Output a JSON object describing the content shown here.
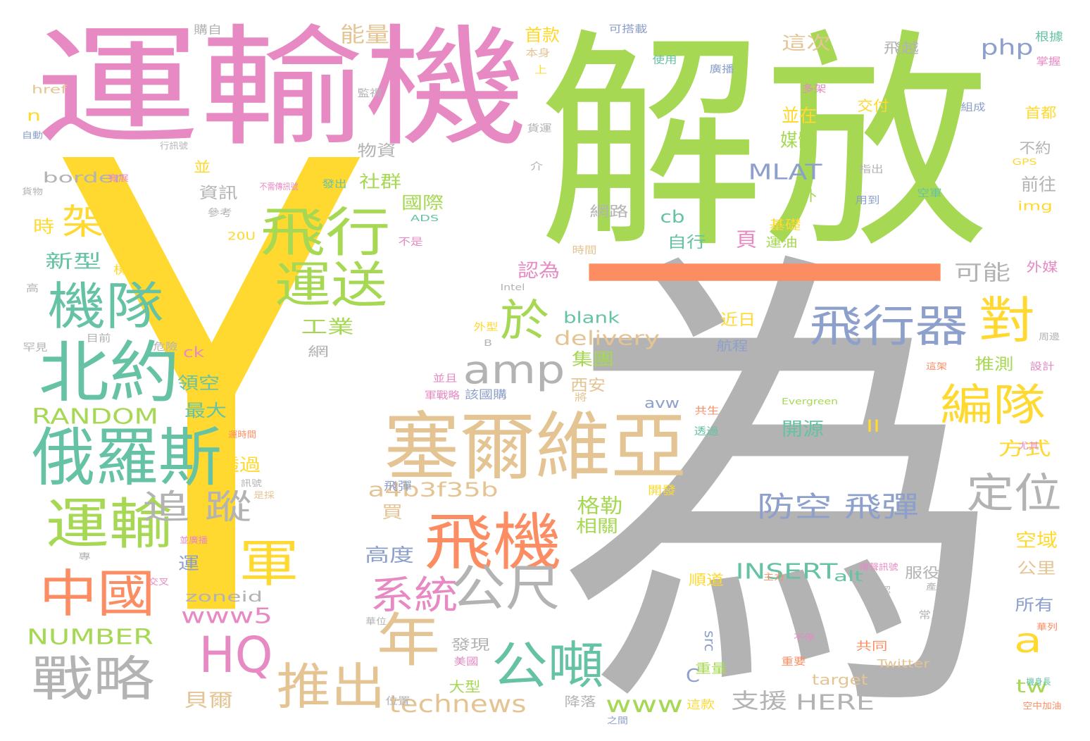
{
  "word_cloud": {
    "palette": {
      "gray": "#b3b3b3",
      "green": "#a6d854",
      "pink": "#e78ac3",
      "yellow": "#ffd92f",
      "orange": "#fc8d62",
      "teal": "#66c2a5",
      "blue": "#8da0cb",
      "tan": "#e5c494"
    },
    "words": [
      {
        "text": "Y",
        "color": "#ffd92f"
      },
      {
        "text": "解放",
        "color": "#a6d854"
      },
      {
        "text": "為",
        "color": "#b3b3b3"
      },
      {
        "text": "一",
        "color": "#fc8d62"
      },
      {
        "text": "運輸機",
        "color": "#e78ac3"
      },
      {
        "text": "塞爾維亞",
        "color": "#e5c494"
      },
      {
        "text": "俄羅斯",
        "color": "#66c2a5"
      },
      {
        "text": "北約",
        "color": "#66c2a5"
      },
      {
        "text": "飛機",
        "color": "#fc8d62"
      },
      {
        "text": "飛行",
        "color": "#a6d854"
      },
      {
        "text": "運送",
        "color": "#a6d854"
      },
      {
        "text": "機隊",
        "color": "#66c2a5"
      },
      {
        "text": "運輸",
        "color": "#a6d854"
      },
      {
        "text": "飛行器",
        "color": "#8da0cb"
      },
      {
        "text": "中國",
        "color": "#fc8d62"
      },
      {
        "text": "戰略",
        "color": "#b3b3b3"
      },
      {
        "text": "HQ",
        "color": "#e78ac3"
      },
      {
        "text": "年",
        "color": "#e5c494"
      },
      {
        "text": "推出",
        "color": "#e5c494"
      },
      {
        "text": "公噸",
        "color": "#66c2a5"
      },
      {
        "text": "公尺",
        "color": "#b3b3b3"
      },
      {
        "text": "amp",
        "color": "#b3b3b3"
      },
      {
        "text": "於",
        "color": "#a6d854"
      },
      {
        "text": "對",
        "color": "#ffd92f"
      },
      {
        "text": "編隊",
        "color": "#ffd92f"
      },
      {
        "text": "軍",
        "color": "#ffd92f"
      },
      {
        "text": "系統",
        "color": "#e78ac3"
      },
      {
        "text": "定位",
        "color": "#b3b3b3"
      },
      {
        "text": "防空 飛彈",
        "color": "#8da0cb"
      },
      {
        "text": "追 蹤",
        "color": "#b3b3b3"
      },
      {
        "text": "架",
        "color": "#ffd92f"
      },
      {
        "text": "a",
        "color": "#ffd92f"
      },
      {
        "text": "technews",
        "color": "#e5c494"
      },
      {
        "text": "www5",
        "color": "#e78ac3"
      },
      {
        "text": "www",
        "color": "#a6d854"
      },
      {
        "text": "a4b3f35b",
        "color": "#e5c494"
      },
      {
        "text": "delivery",
        "color": "#e5c494"
      },
      {
        "text": "MLAT",
        "color": "#8da0cb"
      },
      {
        "text": "RANDOM",
        "color": "#a6d854"
      },
      {
        "text": "NUMBER",
        "color": "#a6d854"
      },
      {
        "text": "INSERT",
        "color": "#66c2a5"
      },
      {
        "text": "HERE",
        "color": "#b3b3b3"
      },
      {
        "text": "php",
        "color": "#8da0cb"
      },
      {
        "text": "border",
        "color": "#b3b3b3"
      },
      {
        "text": "zoneid",
        "color": "#b3b3b3"
      },
      {
        "text": "blank",
        "color": "#66c2a5"
      },
      {
        "text": "target",
        "color": "#e5c494"
      },
      {
        "text": "tw",
        "color": "#a6d854"
      },
      {
        "text": "cb",
        "color": "#66c2a5"
      },
      {
        "text": "avw",
        "color": "#8da0cb"
      },
      {
        "text": "ck",
        "color": "#e78ac3"
      },
      {
        "text": "src",
        "color": "#8da0cb"
      },
      {
        "text": "alt",
        "color": "#66c2a5"
      },
      {
        "text": "img",
        "color": "#ffd92f"
      },
      {
        "text": "href",
        "color": "#e5c494"
      },
      {
        "text": "II",
        "color": "#ffd92f"
      },
      {
        "text": "n",
        "color": "#ffd92f"
      },
      {
        "text": "C",
        "color": "#8da0cb"
      },
      {
        "text": "能量",
        "color": "#e5c494"
      },
      {
        "text": "首款",
        "color": "#ffd92f"
      },
      {
        "text": "這次",
        "color": "#e5c494"
      },
      {
        "text": "飛越",
        "color": "#b3b3b3"
      },
      {
        "text": "並在",
        "color": "#ffd92f"
      },
      {
        "text": "媒體",
        "color": "#a6d854"
      },
      {
        "text": "交付",
        "color": "#ffd92f"
      },
      {
        "text": "首都",
        "color": "#ffd92f"
      },
      {
        "text": "不約",
        "color": "#b3b3b3"
      },
      {
        "text": "前往",
        "color": "#b3b3b3"
      },
      {
        "text": "物資",
        "color": "#b3b3b3"
      },
      {
        "text": "資訊",
        "color": "#b3b3b3"
      },
      {
        "text": "社群",
        "color": "#a6d854"
      },
      {
        "text": "國際",
        "color": "#a6d854"
      },
      {
        "text": "時",
        "color": "#ffd92f"
      },
      {
        "text": "新型",
        "color": "#66c2a5"
      },
      {
        "text": "頁",
        "color": "#e78ac3"
      },
      {
        "text": "自行",
        "color": "#66c2a5"
      },
      {
        "text": "基礎",
        "color": "#ffd92f"
      },
      {
        "text": "運油",
        "color": "#a6d854"
      },
      {
        "text": "網路",
        "color": "#b3b3b3"
      },
      {
        "text": "可能",
        "color": "#b3b3b3"
      },
      {
        "text": "外媒",
        "color": "#e78ac3"
      },
      {
        "text": "認為",
        "color": "#e78ac3"
      },
      {
        "text": "工業",
        "color": "#a6d854"
      },
      {
        "text": "近日",
        "color": "#ffd92f"
      },
      {
        "text": "航程",
        "color": "#8da0cb"
      },
      {
        "text": "集團",
        "color": "#a6d854"
      },
      {
        "text": "推測",
        "color": "#a6d854"
      },
      {
        "text": "西安",
        "color": "#e5c494"
      },
      {
        "text": "領空",
        "color": "#66c2a5"
      },
      {
        "text": "最大",
        "color": "#66c2a5"
      },
      {
        "text": "方式",
        "color": "#ffd92f"
      },
      {
        "text": "開源",
        "color": "#66c2a5"
      },
      {
        "text": "透過",
        "color": "#ffd92f"
      },
      {
        "text": "格勒",
        "color": "#a6d854"
      },
      {
        "text": "買",
        "color": "#e5c494"
      },
      {
        "text": "相關",
        "color": "#a6d854"
      },
      {
        "text": "空域",
        "color": "#ffd92f"
      },
      {
        "text": "公里",
        "color": "#e5c494"
      },
      {
        "text": "高度",
        "color": "#8da0cb"
      },
      {
        "text": "運",
        "color": "#8da0cb"
      },
      {
        "text": "順道",
        "color": "#ffd92f"
      },
      {
        "text": "服役",
        "color": "#b3b3b3"
      },
      {
        "text": "所有",
        "color": "#8da0cb"
      },
      {
        "text": "貝爾",
        "color": "#e5c494"
      },
      {
        "text": "發現",
        "color": "#b3b3b3"
      },
      {
        "text": "大型",
        "color": "#a6d854"
      },
      {
        "text": "重量",
        "color": "#a6d854"
      },
      {
        "text": "支援",
        "color": "#b3b3b3"
      },
      {
        "text": "降落",
        "color": "#b3b3b3"
      },
      {
        "text": "這款",
        "color": "#ffd92f"
      },
      {
        "text": "共同",
        "color": "#fc8d62"
      },
      {
        "text": "Twitter",
        "color": "#e5c494"
      },
      {
        "text": "網",
        "color": "#b3b3b3"
      },
      {
        "text": "該國購",
        "color": "#8da0cb"
      },
      {
        "text": "機型",
        "color": "#ffd92f"
      },
      {
        "text": "20U",
        "color": "#ffd92f"
      },
      {
        "text": "ADS",
        "color": "#66c2a5"
      },
      {
        "text": "Evergreen",
        "color": "#a6d854"
      },
      {
        "text": "GPS",
        "color": "#ffd92f"
      },
      {
        "text": "Intel",
        "color": "#b3b3b3"
      },
      {
        "text": "B",
        "color": "#b3b3b3"
      },
      {
        "text": "購自",
        "color": "#b3b3b3"
      },
      {
        "text": "本身",
        "color": "#e5c494"
      },
      {
        "text": "上",
        "color": "#ffd92f"
      },
      {
        "text": "可搭載",
        "color": "#8da0cb"
      },
      {
        "text": "使用",
        "color": "#66c2a5"
      },
      {
        "text": "廣播",
        "color": "#8da0cb"
      },
      {
        "text": "根據",
        "color": "#66c2a5"
      },
      {
        "text": "掌握",
        "color": "#e78ac3"
      },
      {
        "text": "監視",
        "color": "#b3b3b3"
      },
      {
        "text": "多架",
        "color": "#e78ac3"
      },
      {
        "text": "組成",
        "color": "#8da0cb"
      },
      {
        "text": "貨運",
        "color": "#b3b3b3"
      },
      {
        "text": "指出",
        "color": "#b3b3b3"
      },
      {
        "text": "用到",
        "color": "#8da0cb"
      },
      {
        "text": "空軍",
        "color": "#66c2a5"
      },
      {
        "text": "自動",
        "color": "#8da0cb"
      },
      {
        "text": "行訊號",
        "color": "#b3b3b3"
      },
      {
        "text": "貨物",
        "color": "#b3b3b3"
      },
      {
        "text": "寬展",
        "color": "#e78ac3"
      },
      {
        "text": "參考",
        "color": "#b3b3b3"
      },
      {
        "text": "不是",
        "color": "#e78ac3"
      },
      {
        "text": "發出",
        "color": "#66c2a5"
      },
      {
        "text": "時間",
        "color": "#e5c494"
      },
      {
        "text": "介",
        "color": "#b3b3b3"
      },
      {
        "text": "外型",
        "color": "#ffd92f"
      },
      {
        "text": "危險",
        "color": "#b3b3b3"
      },
      {
        "text": "目前",
        "color": "#b3b3b3"
      },
      {
        "text": "罕見",
        "color": "#b3b3b3"
      },
      {
        "text": "高",
        "color": "#b3b3b3"
      },
      {
        "text": "設計",
        "color": "#e78ac3"
      },
      {
        "text": "周邊",
        "color": "#b3b3b3"
      },
      {
        "text": "這架",
        "color": "#fc8d62"
      },
      {
        "text": "軍戰略",
        "color": "#e78ac3"
      },
      {
        "text": "並且",
        "color": "#e78ac3"
      },
      {
        "text": "將",
        "color": "#e5c494"
      },
      {
        "text": "共生",
        "color": "#fc8d62"
      },
      {
        "text": "透過",
        "color": "#66c2a5"
      },
      {
        "text": "尤其",
        "color": "#e78ac3"
      },
      {
        "text": "運時間",
        "color": "#fc8d62"
      },
      {
        "text": "訊號",
        "color": "#b3b3b3"
      },
      {
        "text": "是採",
        "color": "#e5c494"
      },
      {
        "text": "飛彈",
        "color": "#8da0cb"
      },
      {
        "text": "開發",
        "color": "#ffd92f"
      },
      {
        "text": "主力",
        "color": "#fc8d62"
      },
      {
        "text": "確認",
        "color": "#b3b3b3"
      },
      {
        "text": "產了",
        "color": "#b3b3b3"
      },
      {
        "text": "航道",
        "color": "#b3b3b3"
      },
      {
        "text": "常見",
        "color": "#b3b3b3"
      },
      {
        "text": "華位",
        "color": "#b3b3b3"
      },
      {
        "text": "美國",
        "color": "#e78ac3"
      },
      {
        "text": "重要",
        "color": "#fc8d62"
      },
      {
        "text": "位置",
        "color": "#b3b3b3"
      },
      {
        "text": "之間",
        "color": "#8da0cb"
      },
      {
        "text": "機身長",
        "color": "#66c2a5"
      },
      {
        "text": "空中加油",
        "color": "#fc8d62"
      },
      {
        "text": "華列",
        "color": "#fc8d62"
      },
      {
        "text": "並廣播",
        "color": "#e78ac3"
      },
      {
        "text": "專",
        "color": "#b3b3b3"
      },
      {
        "text": "交叉",
        "color": "#e78ac3"
      },
      {
        "text": "不停",
        "color": "#e78ac3"
      },
      {
        "text": "不需傳訊號",
        "color": "#e78ac3"
      },
      {
        "text": "傳聲訊號",
        "color": "#e78ac3"
      },
      {
        "text": "並",
        "color": "#ffd92f"
      },
      {
        "text": "外",
        "color": "#a6d854"
      }
    ]
  }
}
